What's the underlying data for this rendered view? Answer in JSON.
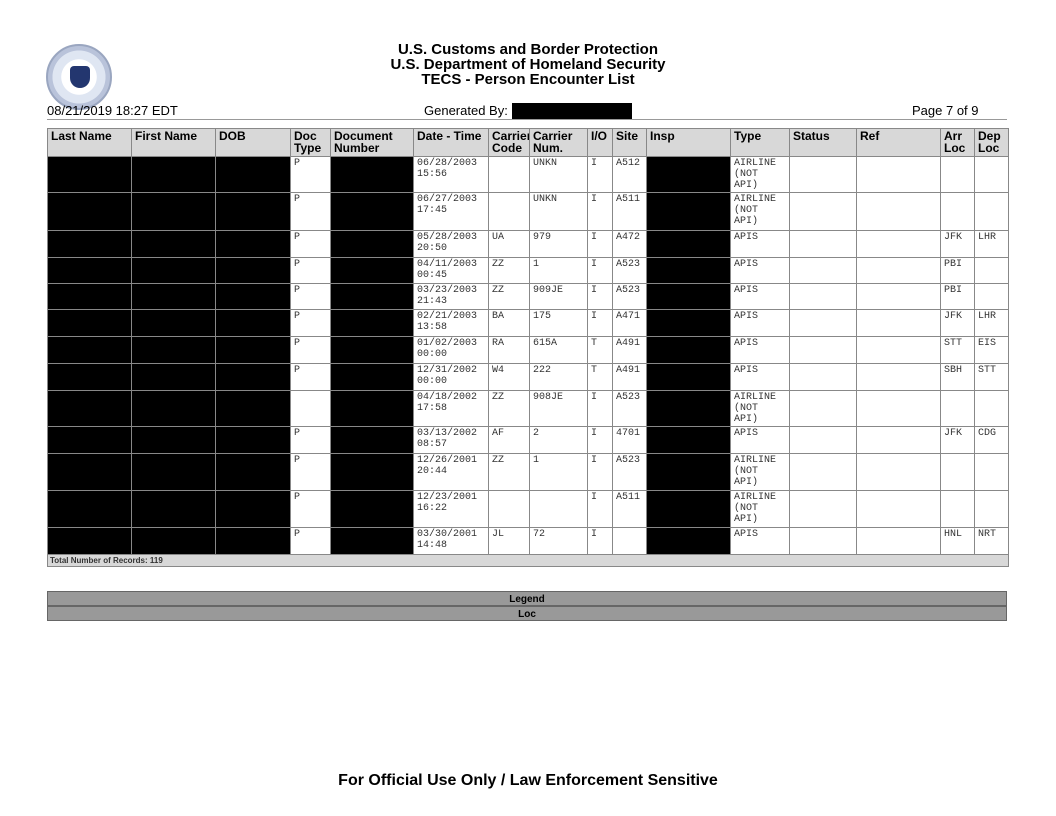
{
  "header": {
    "titles": [
      "U.S. Customs and Border Protection",
      "U.S. Department of Homeland Security",
      "TECS - Person Encounter List"
    ],
    "timestamp": "08/21/2019 18:27 EDT",
    "generated_by_label": "Generated By:",
    "page": "Page 7 of 9",
    "seal_text": "DEPARTMENT OF HOMELAND SECURITY"
  },
  "columns": [
    "Last Name",
    "First Name",
    "DOB",
    "Doc Type",
    "Document Number",
    "Date - Time",
    "Carrier Code",
    "Carrier Num.",
    "I/O",
    "Site",
    "Insp",
    "Type",
    "Status",
    "Ref",
    "Arr Loc",
    "Dep Loc"
  ],
  "rows": [
    {
      "doc_type": "P",
      "date": "06/28/2003 15:56",
      "carrier_code": "",
      "carrier_num": "UNKN",
      "io": "I",
      "site": "A512",
      "type": "AIRLINE (NOT API)",
      "arr": "",
      "dep": ""
    },
    {
      "doc_type": "P",
      "date": "06/27/2003 17:45",
      "carrier_code": "",
      "carrier_num": "UNKN",
      "io": "I",
      "site": "A511",
      "type": "AIRLINE (NOT API)",
      "arr": "",
      "dep": ""
    },
    {
      "doc_type": "P",
      "date": "05/28/2003 20:50",
      "carrier_code": "UA",
      "carrier_num": "979",
      "io": "I",
      "site": "A472",
      "type": "APIS",
      "arr": "JFK",
      "dep": "LHR"
    },
    {
      "doc_type": "P",
      "date": "04/11/2003 00:45",
      "carrier_code": "ZZ",
      "carrier_num": "1",
      "io": "I",
      "site": "A523",
      "type": "APIS",
      "arr": "PBI",
      "dep": ""
    },
    {
      "doc_type": "P",
      "date": "03/23/2003 21:43",
      "carrier_code": "ZZ",
      "carrier_num": "909JE",
      "io": "I",
      "site": "A523",
      "type": "APIS",
      "arr": "PBI",
      "dep": ""
    },
    {
      "doc_type": "P",
      "date": "02/21/2003 13:58",
      "carrier_code": "BA",
      "carrier_num": "175",
      "io": "I",
      "site": "A471",
      "type": "APIS",
      "arr": "JFK",
      "dep": "LHR"
    },
    {
      "doc_type": "P",
      "date": "01/02/2003 00:00",
      "carrier_code": "RA",
      "carrier_num": "615A",
      "io": "T",
      "site": "A491",
      "type": "APIS",
      "arr": "STT",
      "dep": "EIS"
    },
    {
      "doc_type": "P",
      "date": "12/31/2002 00:00",
      "carrier_code": "W4",
      "carrier_num": "222",
      "io": "T",
      "site": "A491",
      "type": "APIS",
      "arr": "SBH",
      "dep": "STT"
    },
    {
      "doc_type": "",
      "date": "04/18/2002 17:58",
      "carrier_code": "ZZ",
      "carrier_num": "908JE",
      "io": "I",
      "site": "A523",
      "type": "AIRLINE (NOT API)",
      "arr": "",
      "dep": ""
    },
    {
      "doc_type": "P",
      "date": "03/13/2002 08:57",
      "carrier_code": "AF",
      "carrier_num": "2",
      "io": "I",
      "site": "4701",
      "type": "APIS",
      "arr": "JFK",
      "dep": "CDG"
    },
    {
      "doc_type": "P",
      "date": "12/26/2001 20:44",
      "carrier_code": "ZZ",
      "carrier_num": "1",
      "io": "I",
      "site": "A523",
      "type": "AIRLINE (NOT API)",
      "arr": "",
      "dep": ""
    },
    {
      "doc_type": "P",
      "date": "12/23/2001 16:22",
      "carrier_code": "",
      "carrier_num": "",
      "io": "I",
      "site": "A511",
      "type": "AIRLINE (NOT API)",
      "arr": "",
      "dep": ""
    },
    {
      "doc_type": "P",
      "date": "03/30/2001 14:48",
      "carrier_code": "JL",
      "carrier_num": "72",
      "io": "I",
      "site": "",
      "type": "APIS",
      "arr": "HNL",
      "dep": "NRT"
    }
  ],
  "total": "Total Number of Records: 119",
  "legend": {
    "title": "Legend",
    "item": "Loc"
  },
  "footer": "For Official Use Only / Law Enforcement Sensitive"
}
